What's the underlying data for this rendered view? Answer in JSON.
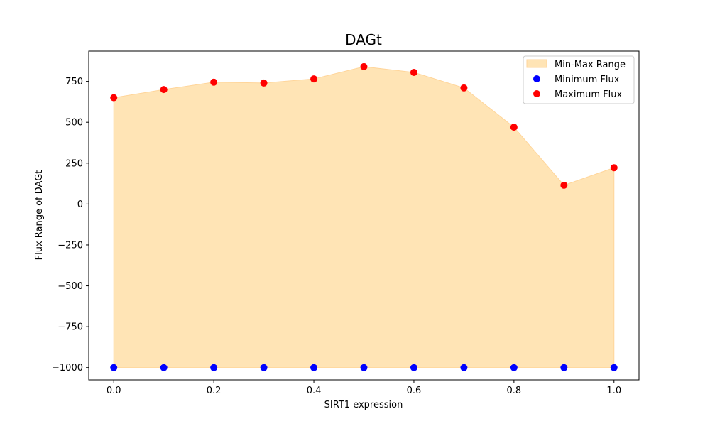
{
  "chart_data": {
    "type": "scatter",
    "title": "DAGt",
    "xlabel": "SIRT1 expression",
    "ylabel": "Flux Range of DAGt",
    "x": [
      0.0,
      0.1,
      0.2,
      0.3,
      0.4,
      0.5,
      0.6,
      0.7,
      0.8,
      0.9,
      1.0
    ],
    "series": [
      {
        "name": "Minimum Flux",
        "color": "#0000ff",
        "values": [
          -1000,
          -1000,
          -1000,
          -1000,
          -1000,
          -1000,
          -1000,
          -1000,
          -1000,
          -1000,
          -1000
        ]
      },
      {
        "name": "Maximum Flux",
        "color": "#ff0000",
        "values": [
          650,
          700,
          745,
          740,
          765,
          840,
          805,
          710,
          470,
          115,
          222
        ]
      }
    ],
    "fill": {
      "name": "Min-Max Range",
      "color": "#ffe4b5",
      "edge_color": "#ffd59a"
    },
    "xlim": [
      -0.05,
      1.05
    ],
    "ylim": [
      -1075,
      935
    ],
    "xticks": [
      0.0,
      0.2,
      0.4,
      0.6,
      0.8,
      1.0
    ],
    "xtick_labels": [
      "0.0",
      "0.2",
      "0.4",
      "0.6",
      "0.8",
      "1.0"
    ],
    "yticks": [
      -1000,
      -750,
      -500,
      -250,
      0,
      250,
      500,
      750
    ],
    "ytick_labels": [
      "−1000",
      "−750",
      "−500",
      "−250",
      "0",
      "250",
      "500",
      "750"
    ],
    "grid": false,
    "legend_position": "top-right"
  }
}
